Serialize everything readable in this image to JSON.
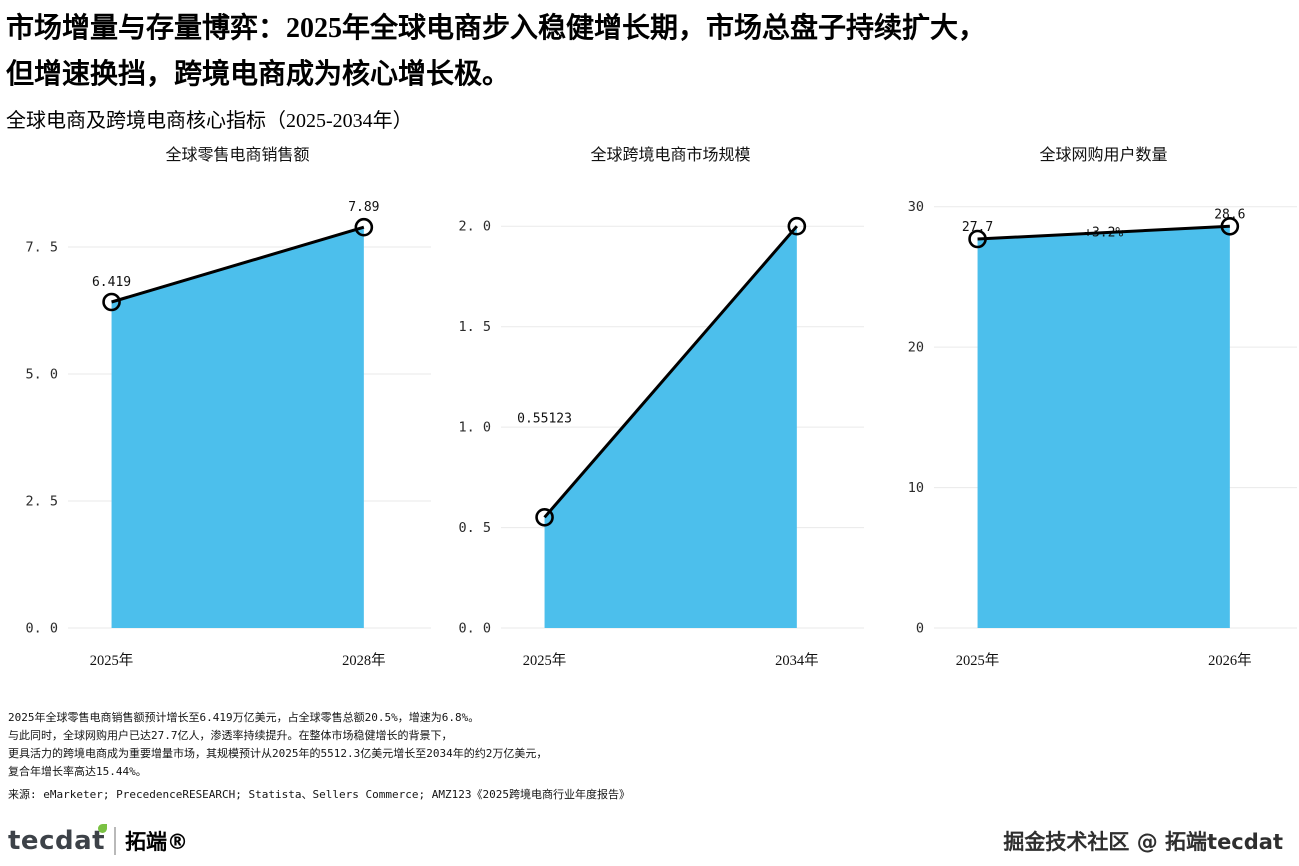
{
  "header": {
    "title_line1": "市场增量与存量博弈：2025年全球电商步入稳健增长期，市场总盘子持续扩大，",
    "title_line2": "但增速换挡，跨境电商成为核心增长极。",
    "subtitle": "全球电商及跨境电商核心指标（2025-2034年）"
  },
  "colors": {
    "fill": "#4CBFEC",
    "line": "#000000",
    "grid": "#eaeaea"
  },
  "chart_data": [
    {
      "type": "area",
      "title": "全球零售电商销售额",
      "x": [
        "2025年",
        "2028年"
      ],
      "values": [
        6.419,
        7.89
      ],
      "labels": [
        "6.419",
        "7.89"
      ],
      "label_dy": [
        -16,
        -16
      ],
      "yticks": [
        0,
        2.5,
        5.0,
        7.5
      ],
      "ytick_labels": [
        "0. 0",
        "2. 5",
        "5. 0",
        "7. 5"
      ],
      "ylim": [
        0,
        8.82
      ],
      "annotation": null,
      "legend": null,
      "grid": true
    },
    {
      "type": "area",
      "title": "全球跨境电商市场规模",
      "x": [
        "2025年",
        "2034年"
      ],
      "values": [
        0.55123,
        2.0
      ],
      "labels": [
        "0.55123",
        null
      ],
      "label_dy": [
        -95,
        0
      ],
      "yticks": [
        0,
        0.5,
        1.0,
        1.5,
        2.0
      ],
      "ytick_labels": [
        "0. 0",
        "0. 5",
        "1. 0",
        "1. 5",
        "2. 0"
      ],
      "ylim": [
        0,
        2.23
      ],
      "annotation": null,
      "legend": null,
      "grid": true
    },
    {
      "type": "area",
      "title": "全球网购用户数量",
      "x": [
        "2025年",
        "2026年"
      ],
      "values": [
        27.7,
        28.6
      ],
      "labels": [
        "27.7",
        "28.6"
      ],
      "label_dy": [
        -8,
        -8
      ],
      "yticks": [
        0,
        10,
        20,
        30
      ],
      "ytick_labels": [
        "0",
        "10",
        "20",
        "30"
      ],
      "ylim": [
        0,
        31.9
      ],
      "annotation": "+3.2%",
      "legend": null,
      "grid": true
    }
  ],
  "footnotes": [
    "2025年全球零售电商销售额预计增长至6.419万亿美元，占全球零售总额20.5%，增速为6.8%。",
    "与此同时，全球网购用户已达27.7亿人，渗透率持续提升。在整体市场稳健增长的背景下，",
    "更具活力的跨境电商成为重要增量市场，其规模预计从2025年的5512.3亿美元增长至2034年的约2万亿美元，",
    "复合年增长率高达15.44%。"
  ],
  "source": "来源: eMarketer; PrecedenceRESEARCH; Statista、Sellers Commerce; AMZ123《2025跨境电商行业年度报告》",
  "footer": {
    "logo_latin": "tecdat",
    "logo_cn": "拓端®",
    "watermark": "掘金技术社区 @ 拓端tecdat"
  }
}
